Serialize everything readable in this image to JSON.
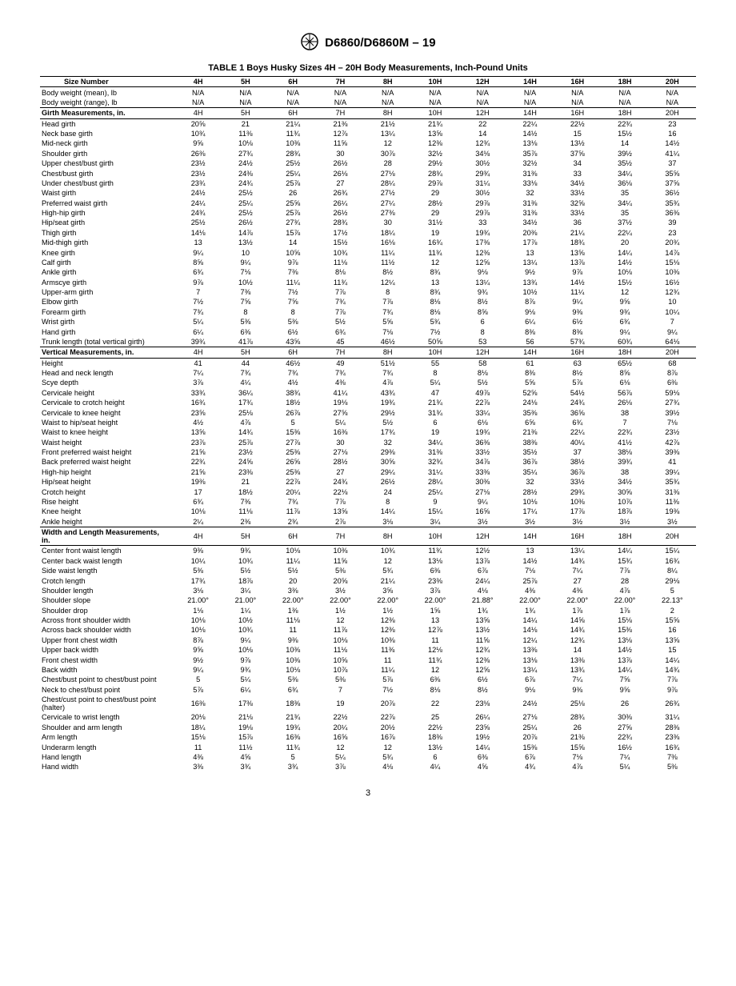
{
  "standard": "D6860/D6860M – 19",
  "table_title": "TABLE 1 Boys Husky Sizes 4H – 20H Body Measurements, Inch-Pound Units",
  "page_number": "3",
  "columns": [
    "Size Number",
    "4H",
    "5H",
    "6H",
    "7H",
    "8H",
    "10H",
    "12H",
    "14H",
    "16H",
    "18H",
    "20H"
  ],
  "rows": [
    {
      "label": "Body weight (mean), lb",
      "v": [
        "N/A",
        "N/A",
        "N/A",
        "N/A",
        "N/A",
        "N/A",
        "N/A",
        "N/A",
        "N/A",
        "N/A",
        "N/A"
      ],
      "cls": "top-rule"
    },
    {
      "label": "Body weight (range), lb",
      "v": [
        "N/A",
        "N/A",
        "N/A",
        "N/A",
        "N/A",
        "N/A",
        "N/A",
        "N/A",
        "N/A",
        "N/A",
        "N/A"
      ],
      "cls": "bottom-rule"
    },
    {
      "label": "Girth Measurements, in.",
      "v": [
        "4H",
        "5H",
        "6H",
        "7H",
        "8H",
        "10H",
        "12H",
        "14H",
        "16H",
        "18H",
        "20H"
      ],
      "cls": "section-header bottom-rule",
      "bold": true
    },
    {
      "label": "Head girth",
      "v": [
        "20⅝",
        "21",
        "21¼",
        "21⅜",
        "21½",
        "21¾",
        "22",
        "22¼",
        "22½",
        "22¾",
        "23"
      ]
    },
    {
      "label": "Neck base girth",
      "v": [
        "10¾",
        "11⅜",
        "11¾",
        "12⅞",
        "13¼",
        "13⅝",
        "14",
        "14½",
        "15",
        "15½",
        "16"
      ]
    },
    {
      "label": "Mid-neck girth",
      "v": [
        "9⅝",
        "10⅛",
        "10⅜",
        "11⅝",
        "12",
        "12⅜",
        "12¾",
        "13⅛",
        "13½",
        "14",
        "14½"
      ]
    },
    {
      "label": "Shoulder girth",
      "v": [
        "26⅜",
        "27¾",
        "28¾",
        "30",
        "30⅞",
        "32½",
        "34⅛",
        "35⅞",
        "37⅝",
        "39½",
        "41¼"
      ]
    },
    {
      "label": "Upper chest/bust girth",
      "v": [
        "23½",
        "24½",
        "25½",
        "26½",
        "28",
        "29½",
        "30½",
        "32½",
        "34",
        "35½",
        "37"
      ]
    },
    {
      "label": "Chest/bust girth",
      "v": [
        "23½",
        "24⅜",
        "25¼",
        "26⅛",
        "27⅛",
        "28¾",
        "29¾",
        "31⅜",
        "33",
        "34¼",
        "35⅝"
      ]
    },
    {
      "label": "Under chest/bust girth",
      "v": [
        "23¾",
        "24¾",
        "25⅞",
        "27",
        "28¼",
        "29⅞",
        "31¼",
        "33⅛",
        "34½",
        "36⅛",
        "37⅝"
      ]
    },
    {
      "label": "Waist girth",
      "v": [
        "24½",
        "25½",
        "26",
        "26¾",
        "27½",
        "29",
        "30½",
        "32",
        "33½",
        "35",
        "36½"
      ]
    },
    {
      "label": "Preferred waist girth",
      "v": [
        "24¼",
        "25¼",
        "25⅝",
        "26¼",
        "27¼",
        "28½",
        "29⅞",
        "31⅜",
        "32⅝",
        "34¼",
        "35¾"
      ]
    },
    {
      "label": "High-hip girth",
      "v": [
        "24¾",
        "25½",
        "25⅞",
        "26½",
        "27⅜",
        "29",
        "29⅞",
        "31⅜",
        "33½",
        "35",
        "36⅜"
      ]
    },
    {
      "label": "Hip/seat girth",
      "v": [
        "25½",
        "26½",
        "27¾",
        "28¾",
        "30",
        "31½",
        "33",
        "34½",
        "36",
        "37½",
        "39"
      ]
    },
    {
      "label": "Thigh girth",
      "v": [
        "14⅛",
        "14⅞",
        "15⅞",
        "17½",
        "18¼",
        "19",
        "19¾",
        "20⅜",
        "21¼",
        "22¼",
        "23"
      ]
    },
    {
      "label": "Mid-thigh girth",
      "v": [
        "13",
        "13½",
        "14",
        "15½",
        "16⅛",
        "16¾",
        "17⅜",
        "17⅞",
        "18¾",
        "20",
        "20¾"
      ]
    },
    {
      "label": "Knee girth",
      "v": [
        "9¼",
        "10",
        "10⅝",
        "10¾",
        "11¼",
        "11¾",
        "12⅜",
        "13",
        "13⅝",
        "14¼",
        "14⅞"
      ]
    },
    {
      "label": "Calf girth",
      "v": [
        "8⅝",
        "9¼",
        "9⅞",
        "11⅛",
        "11½",
        "12",
        "12⅝",
        "13¼",
        "13⅞",
        "14½",
        "15⅛"
      ]
    },
    {
      "label": "Ankle girth",
      "v": [
        "6¾",
        "7⅛",
        "7⅜",
        "8⅛",
        "8½",
        "8¾",
        "9⅛",
        "9½",
        "9⅞",
        "10⅛",
        "10⅜"
      ]
    },
    {
      "label": "Armscye girth",
      "v": [
        "9⅞",
        "10½",
        "11¼",
        "11¾",
        "12¼",
        "13",
        "13¼",
        "13¾",
        "14½",
        "15½",
        "16½"
      ]
    },
    {
      "label": "Upper-arm girth",
      "v": [
        "7",
        "7⅜",
        "7½",
        "7⅞",
        "8",
        "8¾",
        "9¾",
        "10½",
        "11¼",
        "12",
        "12¾"
      ]
    },
    {
      "label": "Elbow girth",
      "v": [
        "7½",
        "7⅝",
        "7⅝",
        "7¾",
        "7⅞",
        "8⅛",
        "8½",
        "8⅞",
        "9¼",
        "9⅝",
        "10"
      ]
    },
    {
      "label": "Forearm girth",
      "v": [
        "7¾",
        "8",
        "8",
        "7⅞",
        "7¾",
        "8⅛",
        "8⅝",
        "9⅛",
        "9⅜",
        "9¾",
        "10¼"
      ]
    },
    {
      "label": "Wrist girth",
      "v": [
        "5¼",
        "5⅜",
        "5⅜",
        "5½",
        "5⅝",
        "5¾",
        "6",
        "6¼",
        "6½",
        "6¾",
        "7"
      ]
    },
    {
      "label": "Hand girth",
      "v": [
        "6¼",
        "6⅜",
        "6½",
        "6¾",
        "7⅛",
        "7½",
        "8",
        "8⅜",
        "8⅜",
        "9¼",
        "9¼"
      ]
    },
    {
      "label": "Trunk length (total vertical girth)",
      "v": [
        "39¾",
        "41⅞",
        "43⅝",
        "45",
        "46½",
        "50⅝",
        "53",
        "56",
        "57¾",
        "60¾",
        "64⅛"
      ],
      "cls": "bottom-rule"
    },
    {
      "label": "Vertical Measurements, in.",
      "v": [
        "4H",
        "5H",
        "6H",
        "7H",
        "8H",
        "10H",
        "12H",
        "14H",
        "16H",
        "18H",
        "20H"
      ],
      "cls": "section-header bottom-rule",
      "bold": true
    },
    {
      "label": "Height",
      "v": [
        "41",
        "44",
        "46½",
        "49",
        "51½",
        "55",
        "58",
        "61",
        "63",
        "65½",
        "68"
      ]
    },
    {
      "label": "Head and neck length",
      "v": [
        "7¼",
        "7¾",
        "7¾",
        "7¾",
        "7¾",
        "8",
        "8⅛",
        "8⅜",
        "8½",
        "8⅝",
        "8⅞"
      ]
    },
    {
      "label": "Scye depth",
      "v": [
        "3⅞",
        "4¼",
        "4½",
        "4⅜",
        "4⅞",
        "5¼",
        "5½",
        "5⅝",
        "5⅞",
        "6⅛",
        "6⅜"
      ]
    },
    {
      "label": "Cervicale height",
      "v": [
        "33¾",
        "36¼",
        "38¾",
        "41¼",
        "43¾",
        "47",
        "49⅞",
        "52⅝",
        "54½",
        "56⅞",
        "59⅛"
      ]
    },
    {
      "label": "Cervicale to crotch height",
      "v": [
        "16¾",
        "17¾",
        "18½",
        "19⅛",
        "19¾",
        "21¾",
        "22⅞",
        "24⅛",
        "24¾",
        "26⅛",
        "27¾"
      ]
    },
    {
      "label": "Cervicale to knee height",
      "v": [
        "23⅝",
        "25⅛",
        "26⅞",
        "27⅝",
        "29½",
        "31¾",
        "33¼",
        "35⅜",
        "36⅝",
        "38",
        "39½"
      ]
    },
    {
      "label": "Waist to hip/seat height",
      "v": [
        "4½",
        "4⅞",
        "5",
        "5¼",
        "5½",
        "6",
        "6⅛",
        "6⅝",
        "6¾",
        "7",
        "7⅛"
      ]
    },
    {
      "label": "Waist to knee height",
      "v": [
        "13⅝",
        "14¾",
        "15⅜",
        "16⅜",
        "17¾",
        "19",
        "19¾",
        "21⅜",
        "22¼",
        "22¾",
        "23½"
      ]
    },
    {
      "label": "Waist height",
      "v": [
        "23⅞",
        "25⅞",
        "27⅞",
        "30",
        "32",
        "34¼",
        "36⅜",
        "38⅜",
        "40¼",
        "41½",
        "42⅞"
      ]
    },
    {
      "label": "Front preferred waist height",
      "v": [
        "21⅝",
        "23½",
        "25⅜",
        "27⅛",
        "29⅜",
        "31⅜",
        "33½",
        "35½",
        "37",
        "38⅛",
        "39⅜"
      ]
    },
    {
      "label": "Back preferred waist height",
      "v": [
        "22¾",
        "24⅝",
        "26⅝",
        "28½",
        "30⅝",
        "32¾",
        "34⅞",
        "36⅞",
        "38½",
        "39¾",
        "41"
      ]
    },
    {
      "label": "High-hip height",
      "v": [
        "21⅝",
        "23⅜",
        "25⅜",
        "27",
        "29¼",
        "31¼",
        "33⅜",
        "35¼",
        "36⅞",
        "38",
        "39¼"
      ]
    },
    {
      "label": "Hip/seat height",
      "v": [
        "19⅜",
        "21",
        "22⅞",
        "24¾",
        "26½",
        "28¼",
        "30⅜",
        "32",
        "33½",
        "34½",
        "35¾"
      ]
    },
    {
      "label": "Crotch height",
      "v": [
        "17",
        "18½",
        "20¼",
        "22⅛",
        "24",
        "25¼",
        "27⅛",
        "28½",
        "29¾",
        "30⅝",
        "31⅜"
      ]
    },
    {
      "label": "Rise height",
      "v": [
        "6¾",
        "7⅜",
        "7¾",
        "7⅞",
        "8",
        "9",
        "9¼",
        "10⅛",
        "10⅜",
        "10⅞",
        "11⅜"
      ]
    },
    {
      "label": "Knee height",
      "v": [
        "10⅛",
        "11⅛",
        "11⅞",
        "13⅝",
        "14¼",
        "15¼",
        "16⅝",
        "17¼",
        "17⅞",
        "18⅞",
        "19⅜"
      ]
    },
    {
      "label": "Ankle height",
      "v": [
        "2¼",
        "2⅜",
        "2¾",
        "2⅞",
        "3⅛",
        "3¼",
        "3½",
        "3½",
        "3½",
        "3½",
        "3½"
      ],
      "cls": "bottom-rule"
    },
    {
      "label": "Width and Length Measurements, in.",
      "v": [
        "4H",
        "5H",
        "6H",
        "7H",
        "8H",
        "10H",
        "12H",
        "14H",
        "16H",
        "18H",
        "20H"
      ],
      "cls": "section-header bottom-rule",
      "bold": true
    },
    {
      "label": "Center front waist length",
      "v": [
        "9⅜",
        "9¾",
        "10⅛",
        "10⅜",
        "10¾",
        "11¾",
        "12½",
        "13",
        "13¼",
        "14¼",
        "15¼"
      ]
    },
    {
      "label": "Center back waist length",
      "v": [
        "10¼",
        "10¾",
        "11¼",
        "11⅝",
        "12",
        "13⅛",
        "13⅞",
        "14½",
        "14¾",
        "15¾",
        "16¾"
      ]
    },
    {
      "label": "Side waist length",
      "v": [
        "5⅜",
        "5½",
        "5½",
        "5⅜",
        "5¾",
        "6⅜",
        "6⅞",
        "7⅛",
        "7¼",
        "7⅞",
        "8¼"
      ]
    },
    {
      "label": "Crotch length",
      "v": [
        "17¾",
        "18⅞",
        "20",
        "20⅝",
        "21¼",
        "23⅜",
        "24¼",
        "25⅞",
        "27",
        "28",
        "29⅛"
      ]
    },
    {
      "label": "Shoulder length",
      "v": [
        "3⅛",
        "3¼",
        "3⅜",
        "3½",
        "3⅝",
        "3⅞",
        "4⅛",
        "4⅜",
        "4⅜",
        "4⅞",
        "5"
      ]
    },
    {
      "label": "Shoulder slope",
      "v": [
        "21.00°",
        "21.00°",
        "22.00°",
        "22.00°",
        "22.00°",
        "22.00°",
        "21.88°",
        "22.00°",
        "22.00°",
        "22.00°",
        "22.13°"
      ]
    },
    {
      "label": "Shoulder drop",
      "v": [
        "1⅛",
        "1¼",
        "1⅜",
        "1½",
        "1½",
        "1⅝",
        "1¾",
        "1¾",
        "1⅞",
        "1⅞",
        "2"
      ]
    },
    {
      "label": "Across front shoulder width",
      "v": [
        "10⅛",
        "10½",
        "11⅛",
        "12",
        "12⅜",
        "13",
        "13⅝",
        "14¼",
        "14⅝",
        "15⅛",
        "15⅝"
      ]
    },
    {
      "label": "Across back shoulder width",
      "v": [
        "10⅛",
        "10¾",
        "11",
        "11⅞",
        "12⅜",
        "12⅞",
        "13½",
        "14⅛",
        "14¾",
        "15⅜",
        "16"
      ]
    },
    {
      "label": "Upper front chest width",
      "v": [
        "8⅞",
        "9¼",
        "9⅜",
        "10⅛",
        "10⅜",
        "11",
        "11⅝",
        "12¼",
        "12¾",
        "13⅛",
        "13⅝"
      ]
    },
    {
      "label": "Upper back width",
      "v": [
        "9⅝",
        "10⅛",
        "10⅜",
        "11⅛",
        "11⅜",
        "12⅛",
        "12¾",
        "13⅜",
        "14",
        "14½",
        "15"
      ]
    },
    {
      "label": "Front chest width",
      "v": [
        "9½",
        "9⅞",
        "10⅜",
        "10⅝",
        "11",
        "11¾",
        "12⅜",
        "13⅛",
        "13⅜",
        "13⅞",
        "14¼"
      ]
    },
    {
      "label": "Back width",
      "v": [
        "9¼",
        "9¾",
        "10⅛",
        "10⅞",
        "11¼",
        "12",
        "12⅝",
        "13¼",
        "13¾",
        "14¼",
        "14¾"
      ]
    },
    {
      "label": "Chest/bust point to chest/bust point",
      "v": [
        "5",
        "5¼",
        "5⅜",
        "5⅜",
        "5⅞",
        "6⅜",
        "6½",
        "6⅞",
        "7¼",
        "7⅝",
        "7⅞"
      ]
    },
    {
      "label": "Neck to chest/bust point",
      "v": [
        "5⅞",
        "6¼",
        "6¾",
        "7",
        "7½",
        "8⅛",
        "8½",
        "9⅛",
        "9⅜",
        "9⅝",
        "9⅞"
      ]
    },
    {
      "label": "Chest/cust point to chest/bust point (halter)",
      "v": [
        "16⅜",
        "17⅜",
        "18⅜",
        "19",
        "20⅞",
        "22",
        "23⅛",
        "24½",
        "25⅛",
        "26",
        "26¾"
      ]
    },
    {
      "label": "Cervicale to wrist length",
      "v": [
        "20⅛",
        "21⅛",
        "21¾",
        "22½",
        "22⅞",
        "25",
        "26¼",
        "27⅛",
        "28¾",
        "30⅜",
        "31¼"
      ]
    },
    {
      "label": "Shoulder and arm length",
      "v": [
        "18¼",
        "19⅛",
        "19¾",
        "20¼",
        "20½",
        "22½",
        "23⅝",
        "25¼",
        "26",
        "27⅝",
        "28⅜"
      ]
    },
    {
      "label": "Arm length",
      "v": [
        "15⅛",
        "15⅞",
        "16⅜",
        "16⅝",
        "16⅞",
        "18⅜",
        "19½",
        "20⅞",
        "21⅜",
        "22¾",
        "23⅜"
      ]
    },
    {
      "label": "Underarm length",
      "v": [
        "11",
        "11½",
        "11¾",
        "12",
        "12",
        "13½",
        "14¼",
        "15⅜",
        "15⅝",
        "16½",
        "16¾"
      ]
    },
    {
      "label": "Hand length",
      "v": [
        "4⅜",
        "4⅝",
        "5",
        "5¼",
        "5¾",
        "6",
        "6⅜",
        "6⅞",
        "7⅛",
        "7¼",
        "7⅜"
      ]
    },
    {
      "label": "Hand width",
      "v": [
        "3⅜",
        "3¾",
        "3¾",
        "3⅞",
        "4⅛",
        "4¼",
        "4⅝",
        "4¾",
        "4⅞",
        "5¼",
        "5⅜"
      ]
    }
  ]
}
